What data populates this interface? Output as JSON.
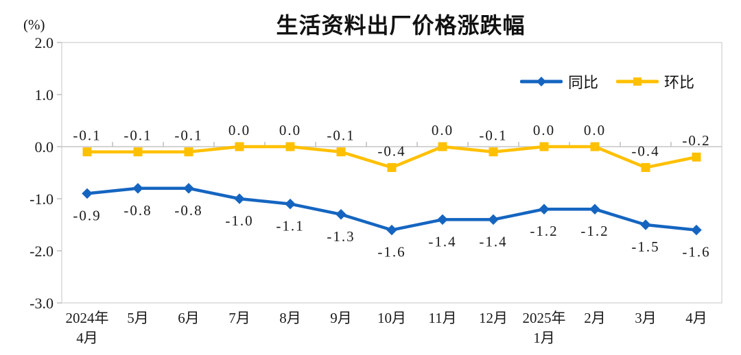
{
  "chart_data": {
    "type": "line",
    "title": "生活资料出厂价格涨跌幅",
    "unit": "(%)",
    "categories": [
      [
        "2024年",
        "4月"
      ],
      [
        "5月"
      ],
      [
        "6月"
      ],
      [
        "7月"
      ],
      [
        "8月"
      ],
      [
        "9月"
      ],
      [
        "10月"
      ],
      [
        "11月"
      ],
      [
        "12月"
      ],
      [
        "2025年",
        "1月"
      ],
      [
        "2月"
      ],
      [
        "3月"
      ],
      [
        "4月"
      ]
    ],
    "series": [
      {
        "name": "同比",
        "color": "#1565c0",
        "marker": "diamond",
        "label_position": "below",
        "values": [
          -0.9,
          -0.8,
          -0.8,
          -1.0,
          -1.1,
          -1.3,
          -1.6,
          -1.4,
          -1.4,
          -1.2,
          -1.2,
          -1.5,
          -1.6
        ]
      },
      {
        "name": "环比",
        "color": "#ffc000",
        "marker": "square",
        "label_position": "above",
        "values": [
          -0.1,
          -0.1,
          -0.1,
          0.0,
          0.0,
          -0.1,
          -0.4,
          0.0,
          -0.1,
          0.0,
          0.0,
          -0.4,
          -0.2
        ]
      }
    ],
    "yticks": [
      2.0,
      1.0,
      0.0,
      -1.0,
      -2.0,
      -3.0
    ],
    "ylim": [
      -3.0,
      2.0
    ],
    "grid": false,
    "legend_position": "top-right-inside"
  },
  "colors": {
    "plot_border": "#d9d9d9",
    "zero_line": "#c6c6c6",
    "tick": "#bdbdbd",
    "text": "#1a1a1a"
  }
}
